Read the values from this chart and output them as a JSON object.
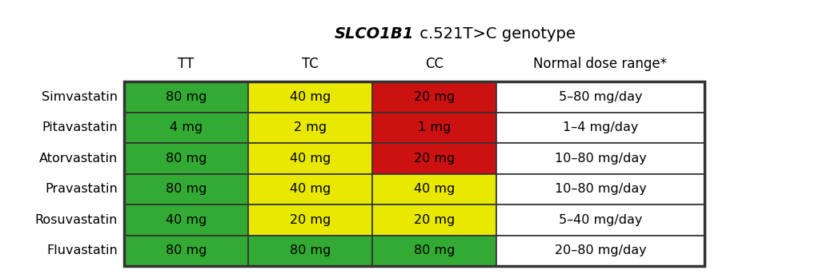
{
  "title_italic": "SLCO1B1",
  "title_normal": " c.521T>C genotype",
  "col_headers": [
    "TT",
    "TC",
    "CC",
    "Normal dose range*"
  ],
  "row_labels": [
    "Simvastatin",
    "Pitavastatin",
    "Atorvastatin",
    "Pravastatin",
    "Rosuvastatin",
    "Fluvastatin"
  ],
  "cell_values": [
    [
      "80 mg",
      "40 mg",
      "20 mg",
      "5–80 mg/day"
    ],
    [
      "4 mg",
      "2 mg",
      "1 mg",
      "1–4 mg/day"
    ],
    [
      "80 mg",
      "40 mg",
      "20 mg",
      "10–80 mg/day"
    ],
    [
      "80 mg",
      "40 mg",
      "40 mg",
      "10–80 mg/day"
    ],
    [
      "40 mg",
      "20 mg",
      "20 mg",
      "5–40 mg/day"
    ],
    [
      "80 mg",
      "80 mg",
      "80 mg",
      "20–80 mg/day"
    ]
  ],
  "cell_colors": [
    [
      "#33aa33",
      "#e8e800",
      "#cc1111",
      "#ffffff"
    ],
    [
      "#33aa33",
      "#e8e800",
      "#cc1111",
      "#ffffff"
    ],
    [
      "#33aa33",
      "#e8e800",
      "#cc1111",
      "#ffffff"
    ],
    [
      "#33aa33",
      "#e8e800",
      "#e8e800",
      "#ffffff"
    ],
    [
      "#33aa33",
      "#e8e800",
      "#e8e800",
      "#ffffff"
    ],
    [
      "#33aa33",
      "#33aa33",
      "#33aa33",
      "#ffffff"
    ]
  ],
  "bg_color": "#ffffff",
  "border_color": "#333333",
  "fig_width": 10.23,
  "fig_height": 3.43,
  "dpi": 100
}
